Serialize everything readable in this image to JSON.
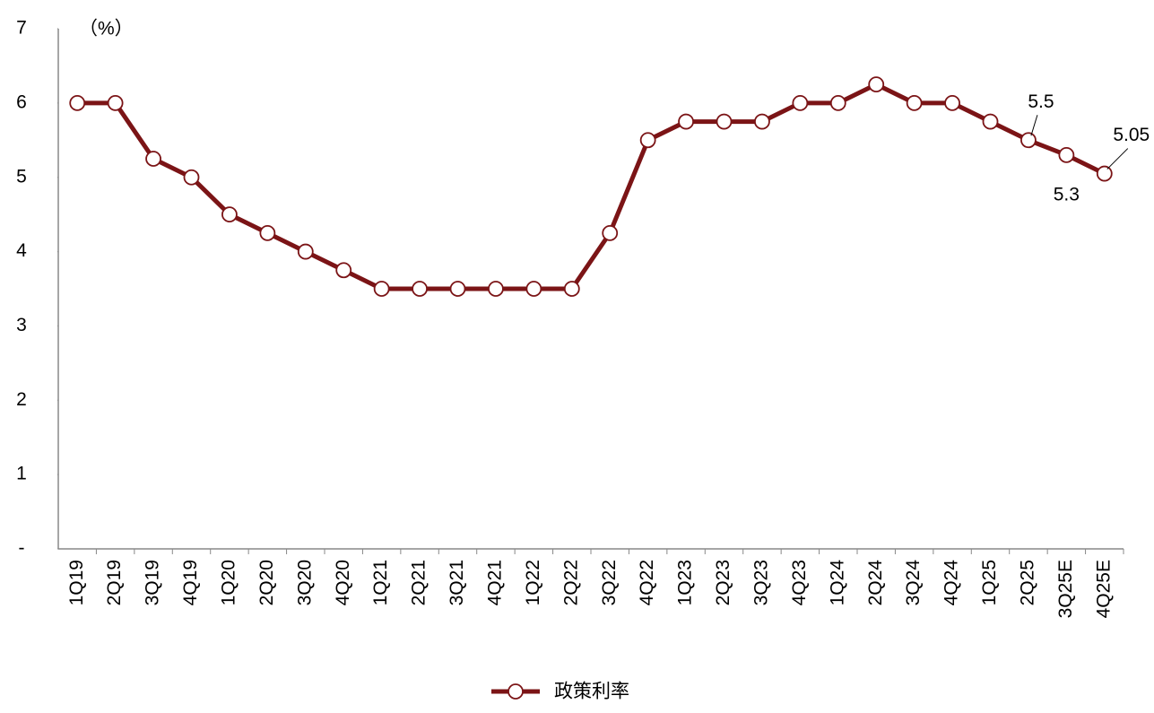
{
  "chart_data": {
    "type": "line",
    "ylabel": "（%）",
    "categories": [
      "1Q19",
      "2Q19",
      "3Q19",
      "4Q19",
      "1Q20",
      "2Q20",
      "3Q20",
      "4Q20",
      "1Q21",
      "2Q21",
      "3Q21",
      "4Q21",
      "1Q22",
      "2Q22",
      "3Q22",
      "4Q22",
      "1Q23",
      "2Q23",
      "3Q23",
      "4Q23",
      "1Q24",
      "2Q24",
      "3Q24",
      "4Q24",
      "1Q25",
      "2Q25",
      "3Q25E",
      "4Q25E"
    ],
    "series": [
      {
        "name": "政策利率",
        "color": "#7b1416",
        "values": [
          6,
          6,
          5.25,
          5,
          4.5,
          4.25,
          4,
          3.75,
          3.5,
          3.5,
          3.5,
          3.5,
          3.5,
          3.5,
          4.25,
          5.5,
          5.75,
          5.75,
          5.75,
          6,
          6,
          6.25,
          6,
          6,
          5.75,
          5.5,
          5.3,
          5.05
        ]
      }
    ],
    "ylim": [
      0,
      7
    ],
    "yticks": [
      {
        "value": 0,
        "label": "-"
      },
      1,
      2,
      3,
      4,
      5,
      6,
      7
    ],
    "legend": "bottom"
  }
}
